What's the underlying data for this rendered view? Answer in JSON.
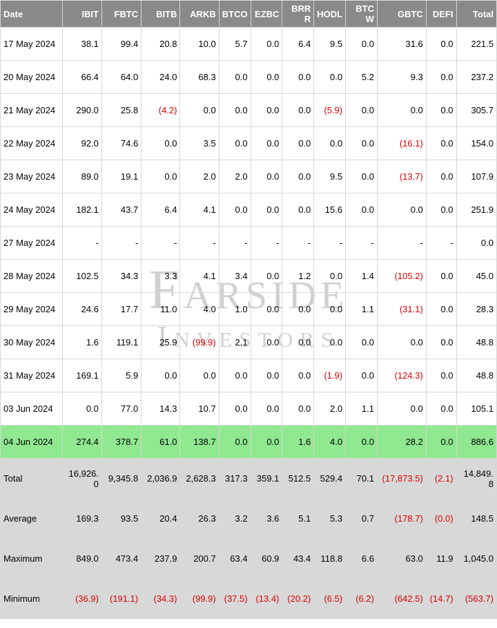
{
  "watermark": {
    "line1": "Farside",
    "line2": "Investors"
  },
  "columns": [
    "Date",
    "IBIT",
    "FBTC",
    "BITB",
    "ARKB",
    "BTCO",
    "EZBC",
    "BRRR",
    "HODL",
    "BTCW",
    "GBTC",
    "DEFI",
    "Total"
  ],
  "col_keys": [
    "date",
    "ibit",
    "fbtc",
    "bitb",
    "arkb",
    "btco",
    "ezbc",
    "brrr",
    "hodl",
    "btcw",
    "gbtc",
    "defi",
    "total"
  ],
  "rows": [
    {
      "date": "17 May 2024",
      "ibit": "38.1",
      "fbtc": "99.4",
      "bitb": "20.8",
      "arkb": "10.0",
      "btco": "5.7",
      "ezbc": "0.0",
      "brrr": "6.4",
      "hodl": "9.5",
      "btcw": "0.0",
      "gbtc": "31.6",
      "defi": "0.0",
      "total": "221.5"
    },
    {
      "date": "20 May 2024",
      "ibit": "66.4",
      "fbtc": "64.0",
      "bitb": "24.0",
      "arkb": "68.3",
      "btco": "0.0",
      "ezbc": "0.0",
      "brrr": "0.0",
      "hodl": "0.0",
      "btcw": "5.2",
      "gbtc": "9.3",
      "defi": "0.0",
      "total": "237.2"
    },
    {
      "date": "21 May 2024",
      "ibit": "290.0",
      "fbtc": "25.8",
      "bitb": "(4.2)",
      "arkb": "0.0",
      "btco": "0.0",
      "ezbc": "0.0",
      "brrr": "0.0",
      "hodl": "(5.9)",
      "btcw": "0.0",
      "gbtc": "0.0",
      "defi": "0.0",
      "total": "305.7"
    },
    {
      "date": "22 May 2024",
      "ibit": "92.0",
      "fbtc": "74.6",
      "bitb": "0.0",
      "arkb": "3.5",
      "btco": "0.0",
      "ezbc": "0.0",
      "brrr": "0.0",
      "hodl": "0.0",
      "btcw": "0.0",
      "gbtc": "(16.1)",
      "defi": "0.0",
      "total": "154.0"
    },
    {
      "date": "23 May 2024",
      "ibit": "89.0",
      "fbtc": "19.1",
      "bitb": "0.0",
      "arkb": "2.0",
      "btco": "2.0",
      "ezbc": "0.0",
      "brrr": "0.0",
      "hodl": "9.5",
      "btcw": "0.0",
      "gbtc": "(13.7)",
      "defi": "0.0",
      "total": "107.9"
    },
    {
      "date": "24 May 2024",
      "ibit": "182.1",
      "fbtc": "43.7",
      "bitb": "6.4",
      "arkb": "4.1",
      "btco": "0.0",
      "ezbc": "0.0",
      "brrr": "0.0",
      "hodl": "15.6",
      "btcw": "0.0",
      "gbtc": "0.0",
      "defi": "0.0",
      "total": "251.9"
    },
    {
      "date": "27 May 2024",
      "ibit": "-",
      "fbtc": "-",
      "bitb": "-",
      "arkb": "-",
      "btco": "-",
      "ezbc": "-",
      "brrr": "-",
      "hodl": "-",
      "btcw": "-",
      "gbtc": "-",
      "defi": "-",
      "total": "0.0"
    },
    {
      "date": "28 May 2024",
      "ibit": "102.5",
      "fbtc": "34.3",
      "bitb": "3.3",
      "arkb": "4.1",
      "btco": "3.4",
      "ezbc": "0.0",
      "brrr": "1.2",
      "hodl": "0.0",
      "btcw": "1.4",
      "gbtc": "(105.2)",
      "defi": "0.0",
      "total": "45.0"
    },
    {
      "date": "29 May 2024",
      "ibit": "24.6",
      "fbtc": "17.7",
      "bitb": "11.0",
      "arkb": "4.0",
      "btco": "1.0",
      "ezbc": "0.0",
      "brrr": "0.0",
      "hodl": "0.0",
      "btcw": "1.1",
      "gbtc": "(31.1)",
      "defi": "0.0",
      "total": "28.3"
    },
    {
      "date": "30 May 2024",
      "ibit": "1.6",
      "fbtc": "119.1",
      "bitb": "25.9",
      "arkb": "(99.9)",
      "btco": "2.1",
      "ezbc": "0.0",
      "brrr": "0.0",
      "hodl": "0.0",
      "btcw": "0.0",
      "gbtc": "0.0",
      "defi": "0.0",
      "total": "48.8"
    },
    {
      "date": "31 May 2024",
      "ibit": "169.1",
      "fbtc": "5.9",
      "bitb": "0.0",
      "arkb": "0.0",
      "btco": "0.0",
      "ezbc": "0.0",
      "brrr": "0.0",
      "hodl": "(1.9)",
      "btcw": "0.0",
      "gbtc": "(124.3)",
      "defi": "0.0",
      "total": "48.8"
    },
    {
      "date": "03 Jun 2024",
      "ibit": "0.0",
      "fbtc": "77.0",
      "bitb": "14.3",
      "arkb": "10.7",
      "btco": "0.0",
      "ezbc": "0.0",
      "brrr": "0.0",
      "hodl": "2.0",
      "btcw": "1.1",
      "gbtc": "0.0",
      "defi": "0.0",
      "total": "105.1"
    },
    {
      "date": "04 Jun 2024",
      "ibit": "274.4",
      "fbtc": "378.7",
      "bitb": "61.0",
      "arkb": "138.7",
      "btco": "0.0",
      "ezbc": "0.0",
      "brrr": "1.6",
      "hodl": "4.0",
      "btcw": "0.0",
      "gbtc": "28.2",
      "defi": "0.0",
      "total": "886.6",
      "highlight": true
    }
  ],
  "summary": [
    {
      "date": "Total",
      "ibit": "16,926.0",
      "fbtc": "9,345.8",
      "bitb": "2,036.9",
      "arkb": "2,628.3",
      "btco": "317.3",
      "ezbc": "359.1",
      "brrr": "512.5",
      "hodl": "529.4",
      "btcw": "70.1",
      "gbtc": "(17,873.5)",
      "defi": "(2.1)",
      "total": "14,849.8"
    },
    {
      "date": "Average",
      "ibit": "169.3",
      "fbtc": "93.5",
      "bitb": "20.4",
      "arkb": "26.3",
      "btco": "3.2",
      "ezbc": "3.6",
      "brrr": "5.1",
      "hodl": "5.3",
      "btcw": "0.7",
      "gbtc": "(178.7)",
      "defi": "(0.0)",
      "total": "148.5"
    },
    {
      "date": "Maximum",
      "ibit": "849.0",
      "fbtc": "473.4",
      "bitb": "237.9",
      "arkb": "200.7",
      "btco": "63.4",
      "ezbc": "60.9",
      "brrr": "43.4",
      "hodl": "118.8",
      "btcw": "6.6",
      "gbtc": "63.0",
      "defi": "11.9",
      "total": "1,045.0"
    },
    {
      "date": "Minimum",
      "ibit": "(36.9)",
      "fbtc": "(191.1)",
      "bitb": "(34.3)",
      "arkb": "(99.9)",
      "btco": "(37.5)",
      "ezbc": "(13.4)",
      "brrr": "(20.2)",
      "hodl": "(6.5)",
      "btcw": "(6.2)",
      "gbtc": "(642.5)",
      "defi": "(14.7)",
      "total": "(563.7)"
    }
  ],
  "style": {
    "header_bg": "#8a8a8a",
    "header_fg": "#ffffff",
    "border": "#d8d8d8",
    "neg_color": "#d40000",
    "highlight_bg": "#90e890",
    "summary_bg": "#d8d8d8",
    "font_family": "Arial",
    "font_size": 13
  }
}
